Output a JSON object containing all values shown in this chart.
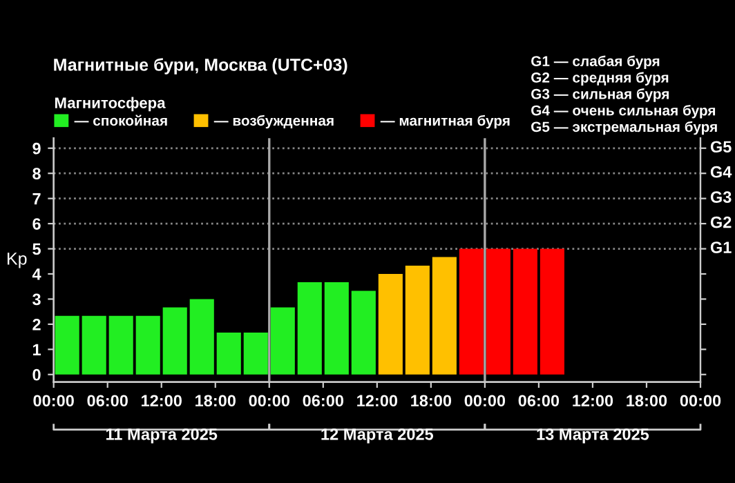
{
  "chart_data": {
    "type": "bar",
    "title": "Магнитные бури, Москва (UTC+03)",
    "ylabel": "Kp",
    "legend_title": "Магнитосфера",
    "legend": "top",
    "series": [
      {
        "name": "— спокойная",
        "color": "#22ee22",
        "x": [
          "2025-03-11T01:30",
          "2025-03-11T04:30",
          "2025-03-11T07:30",
          "2025-03-11T10:30",
          "2025-03-11T13:30",
          "2025-03-11T16:30",
          "2025-03-11T19:30",
          "2025-03-11T22:30",
          "2025-03-12T01:30",
          "2025-03-12T04:30",
          "2025-03-12T07:30",
          "2025-03-12T10:30"
        ],
        "values": [
          2.33,
          2.33,
          2.33,
          2.33,
          2.67,
          3,
          1.67,
          1.67,
          2.67,
          3.67,
          3.67,
          3.33
        ]
      },
      {
        "name": "— возбужденная",
        "color": "#ffc000",
        "x": [
          "2025-03-12T13:30",
          "2025-03-12T16:30",
          "2025-03-12T19:30"
        ],
        "values": [
          4,
          4.33,
          4.67
        ]
      },
      {
        "name": "— магнитная буря",
        "color": "#ff0000",
        "x": [
          "2025-03-12T22:30",
          "2025-03-13T01:30",
          "2025-03-13T04:30",
          "2025-03-13T07:30"
        ],
        "values": [
          5,
          5,
          5,
          5
        ]
      }
    ],
    "xlim": [
      "2025-03-11T00:00",
      "2025-03-14T00:00"
    ],
    "xticks": [
      {
        "value": "2025-03-11T00:00",
        "label": "00:00"
      },
      {
        "value": "2025-03-11T06:00",
        "label": "06:00"
      },
      {
        "value": "2025-03-11T12:00",
        "label": "12:00"
      },
      {
        "value": "2025-03-11T18:00",
        "label": "18:00"
      },
      {
        "value": "2025-03-12T00:00",
        "label": "00:00"
      },
      {
        "value": "2025-03-12T06:00",
        "label": "06:00"
      },
      {
        "value": "2025-03-12T12:00",
        "label": "12:00"
      },
      {
        "value": "2025-03-12T18:00",
        "label": "18:00"
      },
      {
        "value": "2025-03-13T00:00",
        "label": "00:00"
      },
      {
        "value": "2025-03-13T06:00",
        "label": "06:00"
      },
      {
        "value": "2025-03-13T12:00",
        "label": "12:00"
      },
      {
        "value": "2025-03-13T18:00",
        "label": "18:00"
      },
      {
        "value": "2025-03-14T00:00",
        "label": "00:00"
      }
    ],
    "ylim": [
      -0.3,
      9.4
    ],
    "yticks": [
      0,
      1,
      2,
      3,
      4,
      5,
      6,
      7,
      8,
      9
    ],
    "ref_lines": [
      {
        "axis": "x",
        "value": "2025-03-12T00:00",
        "color": "#aaaaaa",
        "line_style": "solid"
      },
      {
        "axis": "x",
        "value": "2025-03-13T00:00",
        "color": "#aaaaaa",
        "line_style": "solid"
      },
      {
        "axis": "y",
        "value": 5,
        "label": "G1",
        "color": "#888888",
        "line_style": "dotted"
      },
      {
        "axis": "y",
        "value": 6,
        "label": "G2",
        "color": "#888888",
        "line_style": "dotted"
      },
      {
        "axis": "y",
        "value": 7,
        "label": "G3",
        "color": "#888888",
        "line_style": "dotted"
      },
      {
        "axis": "y",
        "value": 8,
        "label": "G4",
        "color": "#888888",
        "line_style": "dotted"
      },
      {
        "axis": "y",
        "value": 9,
        "label": "G5",
        "color": "#888888",
        "line_style": "dotted"
      }
    ],
    "annotations": [
      "G1 — слабая буря",
      "G2 — средняя буря",
      "G3 — сильная буря",
      "G4 — очень сильная буря",
      "G5 — экстремальная буря",
      "11 Марта 2025",
      "12 Марта 2025",
      "13 Марта 2025"
    ]
  }
}
